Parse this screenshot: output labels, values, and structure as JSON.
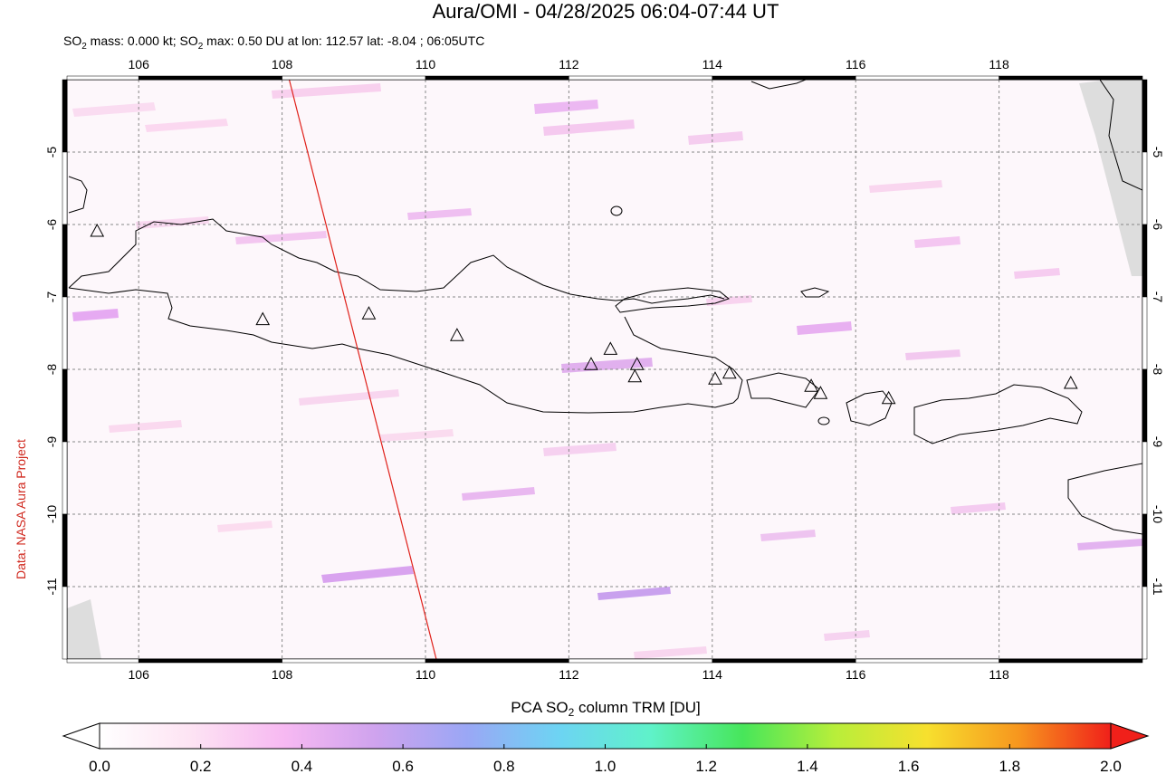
{
  "title": "Aura/OMI - 04/28/2025 06:04-07:44 UT",
  "subtitle": {
    "prefix": "SO",
    "sub": "2",
    "mid": " mass: 0.000 kt; SO",
    "sub2": "2",
    "rest": " max: 0.50 DU at lon: 112.57 lat: -8.04 ; 06:05UTC"
  },
  "side_label": "Data: NASA Aura Project",
  "map": {
    "lon_range": [
      105,
      120
    ],
    "lat_range": [
      -12,
      -4
    ],
    "lon_ticks": [
      "106",
      "108",
      "110",
      "112",
      "114",
      "116",
      "118"
    ],
    "lat_ticks": [
      "-5",
      "-6",
      "-7",
      "-8",
      "-9",
      "-10",
      "-11"
    ],
    "lon_tick_values": [
      106,
      108,
      110,
      112,
      114,
      116,
      118
    ],
    "lat_tick_values": [
      -5,
      -6,
      -7,
      -8,
      -9,
      -10,
      -11
    ],
    "swath_edge": [
      [
        108.1,
        -4.0
      ],
      [
        110.15,
        -12.0
      ]
    ],
    "volcanoes": [
      [
        105.42,
        -6.1
      ],
      [
        107.73,
        -7.32
      ],
      [
        109.21,
        -7.24
      ],
      [
        110.44,
        -7.54
      ],
      [
        112.31,
        -7.94
      ],
      [
        112.58,
        -7.73
      ],
      [
        112.95,
        -7.94
      ],
      [
        112.92,
        -8.11
      ],
      [
        114.04,
        -8.14
      ],
      [
        114.24,
        -8.06
      ],
      [
        115.38,
        -8.24
      ],
      [
        115.51,
        -8.34
      ],
      [
        116.46,
        -8.41
      ],
      [
        119.0,
        -8.2
      ]
    ]
  },
  "colorbar": {
    "label_prefix": "PCA SO",
    "label_sub": "2",
    "label_suffix": " column TRM [DU]",
    "ticks": [
      "0.0",
      "0.2",
      "0.4",
      "0.6",
      "0.8",
      "1.0",
      "1.2",
      "1.4",
      "1.6",
      "1.8",
      "2.0"
    ],
    "range": [
      0.0,
      2.0
    ],
    "colors": [
      "#ffffff",
      "#fde3f3",
      "#f7b9f2",
      "#cfa3ee",
      "#9aa7f5",
      "#6dd4f3",
      "#5ff2c9",
      "#47e65a",
      "#b8ee3a",
      "#f7e02e",
      "#f7961e",
      "#f0201a"
    ]
  }
}
